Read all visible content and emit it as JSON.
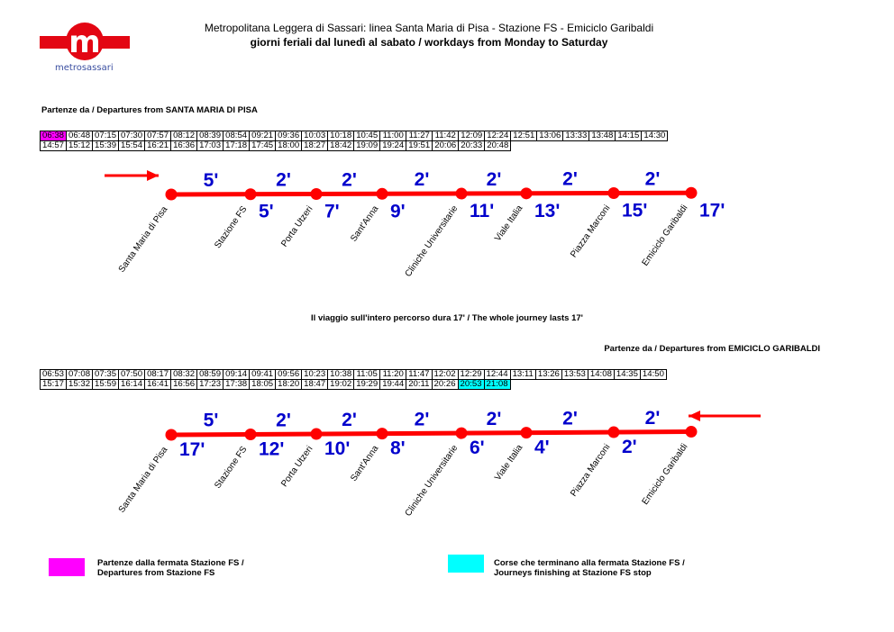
{
  "logo": {
    "letter": "m",
    "word": "metrosassari",
    "color": "#e30613"
  },
  "header": {
    "title": "Metropolitana Leggera di Sassari: linea Santa Maria di Pisa - Stazione FS - Emiciclo Garibaldi",
    "subtitle": "giorni feriali dal lunedì al sabato / workdays from Monday to Saturday"
  },
  "outbound": {
    "heading": "Partenze da / Departures from SANTA MARIA DI PISA",
    "rows": [
      [
        "06:38",
        "06:48",
        "07:15",
        "07:30",
        "07:57",
        "08:12",
        "08:39",
        "08:54",
        "09:21",
        "09:36",
        "10:03",
        "10:18",
        "10:45",
        "11:00",
        "11:27",
        "11:42",
        "12:09",
        "12:24",
        "12:51",
        "13:06",
        "13:33",
        "13:48",
        "14:15",
        "14:30"
      ],
      [
        "14:57",
        "15:12",
        "15:39",
        "15:54",
        "16:21",
        "16:36",
        "17:03",
        "17:18",
        "17:45",
        "18:00",
        "18:27",
        "18:42",
        "19:09",
        "19:24",
        "19:51",
        "20:06",
        "20:33",
        "20:48"
      ]
    ],
    "highlight_magenta": [
      [
        0,
        0
      ]
    ],
    "highlight_cyan": [],
    "segments": [
      "5'",
      "2'",
      "2'",
      "2'",
      "2'",
      "2'",
      "2'"
    ],
    "cumulative": [
      "5'",
      "7'",
      "9'",
      "11'",
      "13'",
      "15'",
      "17'"
    ]
  },
  "journey_note": "Il viaggio sull'intero percorso dura 17' / The whole journey lasts 17'",
  "inbound": {
    "heading": "Partenze da / Departures from EMICICLO GARIBALDI",
    "rows": [
      [
        "06:53",
        "07:08",
        "07:35",
        "07:50",
        "08:17",
        "08:32",
        "08:59",
        "09:14",
        "09:41",
        "09:56",
        "10:23",
        "10:38",
        "11:05",
        "11:20",
        "11:47",
        "12:02",
        "12:29",
        "12:44",
        "13:11",
        "13:26",
        "13:53",
        "14:08",
        "14:35",
        "14:50"
      ],
      [
        "15:17",
        "15:32",
        "15:59",
        "16:14",
        "16:41",
        "16:56",
        "17:23",
        "17:38",
        "18:05",
        "18:20",
        "18:47",
        "19:02",
        "19:29",
        "19:44",
        "20:11",
        "20:26",
        "20:53",
        "21:08"
      ]
    ],
    "highlight_magenta": [],
    "highlight_cyan": [
      [
        1,
        16
      ],
      [
        1,
        17
      ]
    ],
    "segments": [
      "5'",
      "2'",
      "2'",
      "2'",
      "2'",
      "2'",
      "2'"
    ],
    "cumulative": [
      "17'",
      "12'",
      "10'",
      "8'",
      "6'",
      "4'",
      "2'"
    ]
  },
  "stops": [
    "Santa Maria di Pisa",
    "Stazione FS",
    "Porta Utzeri",
    "Sant'Anna",
    "Cliniche Universitarie",
    "Viale Italia",
    "Piazza Marconi",
    "Emiciclo Garibaldi"
  ],
  "legend": {
    "magenta": {
      "color": "#ff00ff",
      "line1": "Partenze dalla fermata Stazione FS /",
      "line2": "Departures from Stazione FS"
    },
    "cyan": {
      "color": "#00ffff",
      "line1": "Corse che terminano alla fermata Stazione FS /",
      "line2": "Journeys finishing at Stazione FS stop"
    }
  },
  "colors": {
    "line": "#ff0000",
    "minutes": "#0000cc"
  }
}
